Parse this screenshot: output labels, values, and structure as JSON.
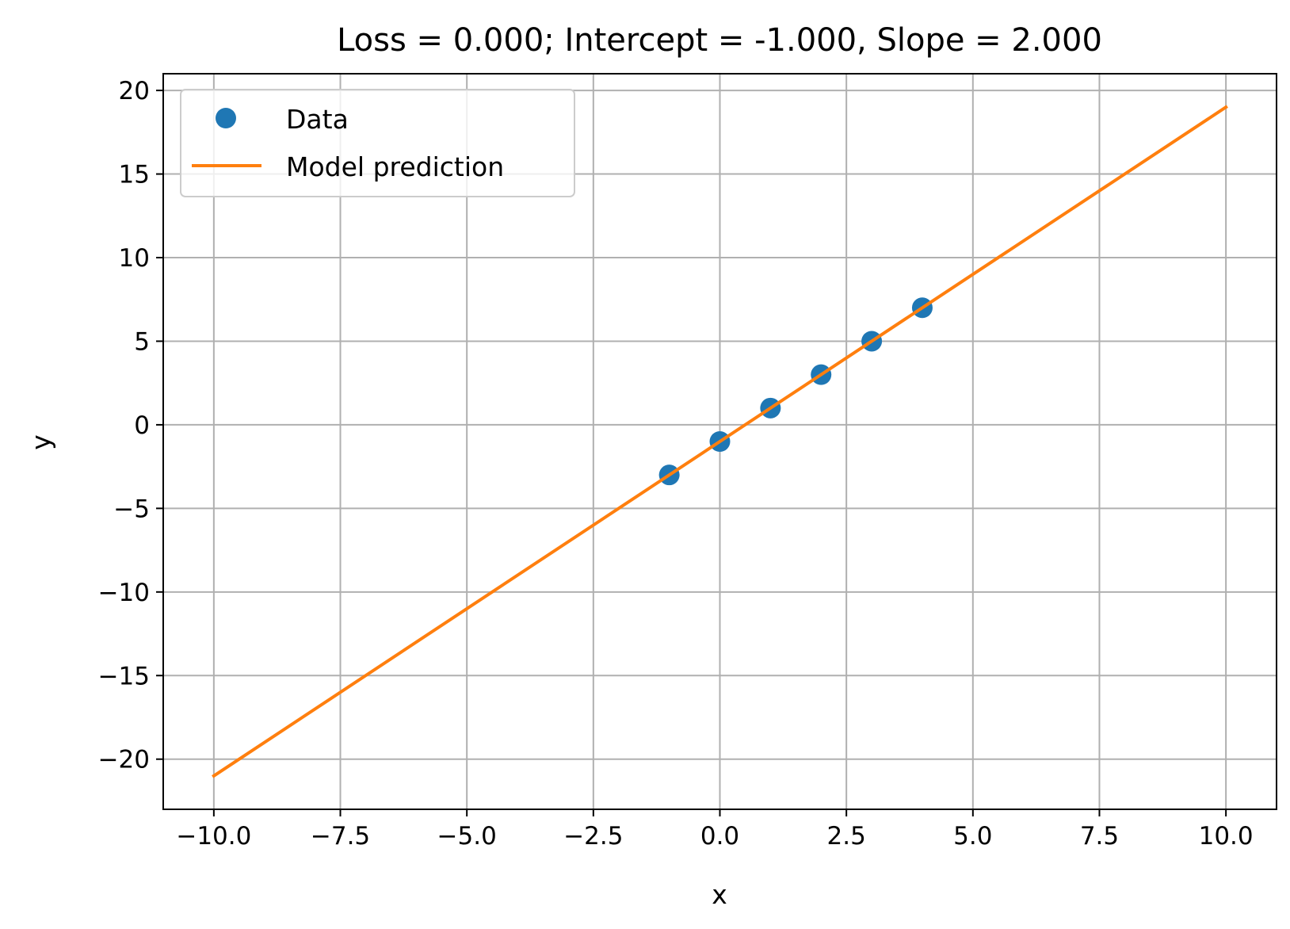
{
  "chart_data": {
    "type": "scatter+line",
    "title": "Loss = 0.000; Intercept = -1.000, Slope = 2.000",
    "xlabel": "x",
    "ylabel": "y",
    "xlim": [
      -11,
      11
    ],
    "ylim": [
      -23,
      21
    ],
    "grid": true,
    "legend_location": "upper-left",
    "x_ticks": [
      -10.0,
      -7.5,
      -5.0,
      -2.5,
      0.0,
      2.5,
      5.0,
      7.5,
      10.0
    ],
    "x_tick_labels": [
      "−10.0",
      "−7.5",
      "−5.0",
      "−2.5",
      "0.0",
      "2.5",
      "5.0",
      "7.5",
      "10.0"
    ],
    "y_ticks": [
      20,
      15,
      10,
      5,
      0,
      -5,
      -10,
      -15,
      -20
    ],
    "y_tick_labels": [
      "20",
      "15",
      "10",
      "5",
      "0",
      "−5",
      "−10",
      "−15",
      "−20"
    ],
    "series": [
      {
        "name": "Data",
        "kind": "scatter",
        "color": "#1f77b4",
        "x": [
          -1,
          0,
          1,
          2,
          3,
          4
        ],
        "y": [
          -3,
          -1,
          1,
          3,
          5,
          7
        ]
      },
      {
        "name": "Model prediction",
        "kind": "line",
        "color": "#ff7f0e",
        "x": [
          -10,
          10
        ],
        "y": [
          -21,
          19
        ]
      }
    ]
  }
}
